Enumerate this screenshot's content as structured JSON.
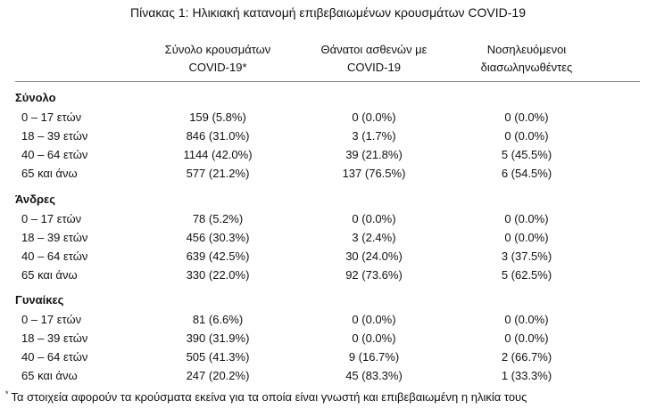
{
  "title": "Πίνακας 1: Ηλικιακή κατανομή επιβεβαιωμένων κρουσμάτων COVID-19",
  "headers": {
    "cases": [
      "Σύνολο κρουσμάτων",
      "COVID-19*"
    ],
    "deaths": [
      "Θάνατοι ασθενών με",
      "COVID-19"
    ],
    "hospitalized": [
      "Νοσηλευόμενοι",
      "διασωληνωθέντες"
    ]
  },
  "sections": [
    {
      "title": "Σύνολο",
      "rows": [
        {
          "age": "0 – 17 ετών",
          "cases": "159 (5.8%)",
          "deaths": "0 (0.0%)",
          "hospitalized": "0 (0.0%)"
        },
        {
          "age": "18 – 39 ετών",
          "cases": "846 (31.0%)",
          "deaths": "3 (1.7%)",
          "hospitalized": "0 (0.0%)"
        },
        {
          "age": "40 – 64 ετών",
          "cases": "1144 (42.0%)",
          "deaths": "39 (21.8%)",
          "hospitalized": "5 (45.5%)"
        },
        {
          "age": "65 και άνω",
          "cases": "577 (21.2%)",
          "deaths": "137 (76.5%)",
          "hospitalized": "6 (54.5%)"
        }
      ]
    },
    {
      "title": "Άνδρες",
      "rows": [
        {
          "age": "0 – 17 ετών",
          "cases": "78 (5.2%)",
          "deaths": "0 (0.0%)",
          "hospitalized": "0 (0.0%)"
        },
        {
          "age": "18 – 39 ετών",
          "cases": "456 (30.3%)",
          "deaths": "3 (2.4%)",
          "hospitalized": "0 (0.0%)"
        },
        {
          "age": "40 – 64 ετών",
          "cases": "639 (42.5%)",
          "deaths": "30 (24.0%)",
          "hospitalized": "3 (37.5%)"
        },
        {
          "age": "65 και άνω",
          "cases": "330 (22.0%)",
          "deaths": "92 (73.6%)",
          "hospitalized": "5 (62.5%)"
        }
      ]
    },
    {
      "title": "Γυναίκες",
      "rows": [
        {
          "age": "0 – 17 ετών",
          "cases": "81 (6.6%)",
          "deaths": "0 (0.0%)",
          "hospitalized": "0 (0.0%)"
        },
        {
          "age": "18 – 39 ετών",
          "cases": "390 (31.9%)",
          "deaths": "0 (0.0%)",
          "hospitalized": "0 (0.0%)"
        },
        {
          "age": "40 – 64 ετών",
          "cases": "505 (41.3%)",
          "deaths": "9 (16.7%)",
          "hospitalized": "2 (66.7%)"
        },
        {
          "age": "65 και άνω",
          "cases": "247 (20.2%)",
          "deaths": "45 (83.3%)",
          "hospitalized": "1 (33.3%)"
        }
      ]
    }
  ],
  "footnote": {
    "marker": "*",
    "text": "Τα στοιχεία αφορούν τα κρούσματα εκείνα για τα οποία είναι γνωστή και επιβεβαιωμένη η ηλικία τους"
  }
}
